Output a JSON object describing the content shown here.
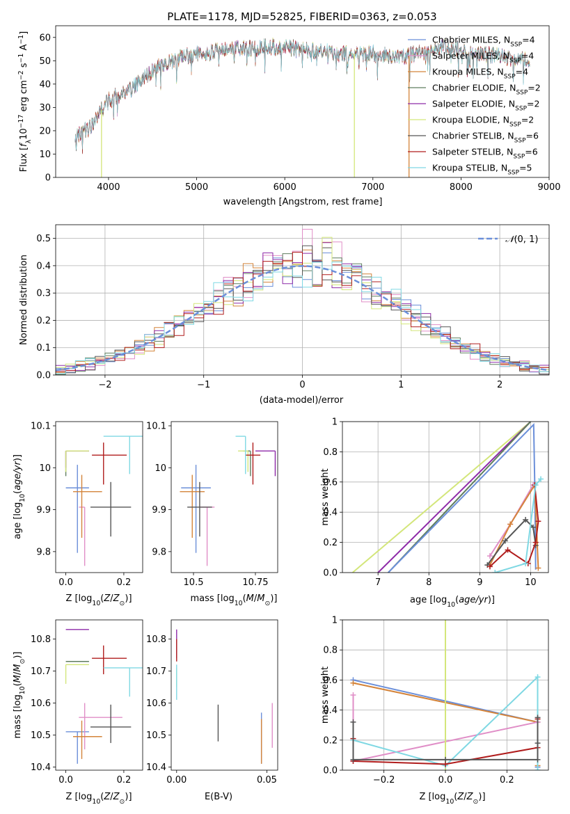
{
  "figure_title": "PLATE=1178, MJD=52825, FIBERID=0363, z=0.053",
  "colors": {
    "Chabrier MILES": "#6b8fd9",
    "Salpeter MILES": "#e08ec7",
    "Kroupa MILES": "#d4843a",
    "Chabrier ELODIE": "#5f7d5f",
    "Salpeter ELODIE": "#8e2aa8",
    "Kroupa ELODIE": "#d3e67a",
    "Chabrier STELIB": "#555555",
    "Salpeter STELIB": "#b01c1c",
    "Kroupa STELIB": "#7fd8e3"
  },
  "chart_data": [
    {
      "id": "spectrum",
      "type": "line",
      "title": "PLATE=1178, MJD=52825, FIBERID=0363, z=0.053",
      "xlabel": "wavelength [Angstrom, rest frame]",
      "ylabel": "Flux [f_λ10^-17 erg cm^-2 s^-1 A^-1]",
      "xlim": [
        3400,
        9000
      ],
      "ylim": [
        0,
        65
      ],
      "xticks": [
        "4000",
        "5000",
        "6000",
        "7000",
        "8000",
        "9000"
      ],
      "yticks": [
        "0",
        "10",
        "20",
        "30",
        "40",
        "50",
        "60"
      ],
      "grid": false,
      "legend_position": "upper right",
      "legend": [
        {
          "name": "Chabrier MILES",
          "nssp": "4"
        },
        {
          "name": "Salpeter MILES",
          "nssp": "4"
        },
        {
          "name": "Kroupa MILES",
          "nssp": "4"
        },
        {
          "name": "Chabrier ELODIE",
          "nssp": "2"
        },
        {
          "name": "Salpeter ELODIE",
          "nssp": "2"
        },
        {
          "name": "Kroupa ELODIE",
          "nssp": "2"
        },
        {
          "name": "Chabrier STELIB",
          "nssp": "6"
        },
        {
          "name": "Salpeter STELIB",
          "nssp": "6"
        },
        {
          "name": "Kroupa STELIB",
          "nssp": "5"
        }
      ],
      "continuum": [
        [
          3620,
          17
        ],
        [
          3700,
          19
        ],
        [
          3800,
          22
        ],
        [
          3900,
          28
        ],
        [
          4000,
          33
        ],
        [
          4100,
          35
        ],
        [
          4200,
          37
        ],
        [
          4300,
          39
        ],
        [
          4400,
          43
        ],
        [
          4500,
          46
        ],
        [
          4600,
          48
        ],
        [
          4700,
          49
        ],
        [
          4800,
          51
        ],
        [
          4900,
          52
        ],
        [
          5000,
          53
        ],
        [
          5100,
          53
        ],
        [
          5200,
          54
        ],
        [
          5300,
          54
        ],
        [
          5400,
          55
        ],
        [
          5600,
          55
        ],
        [
          5800,
          56
        ],
        [
          6000,
          56
        ],
        [
          6200,
          55
        ],
        [
          6400,
          54
        ],
        [
          6600,
          53
        ],
        [
          6800,
          53
        ],
        [
          7000,
          53
        ],
        [
          7200,
          52
        ],
        [
          7400,
          52
        ],
        [
          7600,
          54
        ],
        [
          7800,
          56
        ],
        [
          8000,
          55
        ],
        [
          8200,
          53
        ],
        [
          8400,
          52
        ],
        [
          8600,
          51
        ],
        [
          8780,
          51
        ]
      ],
      "drops": [
        {
          "series": "Kroupa ELODIE",
          "x": 3920
        },
        {
          "series": "Kroupa ELODIE",
          "x": 6790
        },
        {
          "series": "Kroupa MILES",
          "x": 7410
        }
      ]
    },
    {
      "id": "residuals",
      "type": "histogram",
      "xlabel": "(data-model)/error",
      "ylabel": "Normed distribution",
      "xlim": [
        -2.5,
        2.5
      ],
      "ylim": [
        0,
        0.55
      ],
      "xticks": [
        "−2",
        "−1",
        "0",
        "1",
        "2"
      ],
      "yticks": [
        "0.0",
        "0.1",
        "0.2",
        "0.3",
        "0.4",
        "0.5"
      ],
      "grid": true,
      "legend_position": "upper right",
      "reference_curve": "N(0,1)",
      "bin_width": 0.1
    },
    {
      "id": "age_vs_Z",
      "type": "errorbar",
      "xlabel": "Z [log10(Z/Z⊙)]",
      "ylabel": "age [log10(age/yr)]",
      "xlim": [
        -0.035,
        0.265
      ],
      "ylim": [
        9.75,
        10.11
      ],
      "xticks": [
        0.0,
        0.2
      ],
      "yticks": [
        9.8,
        9.9,
        10.0,
        10.1
      ],
      "grid": false,
      "points": [
        {
          "series": "Chabrier MILES",
          "x": 0.04,
          "xerr": [
            0.04,
            0.04
          ],
          "y": 9.952,
          "yerr": [
            0.155,
            0.055
          ]
        },
        {
          "series": "Salpeter MILES",
          "x": 0.065,
          "xerr": [
            0.02,
            0.0
          ],
          "y": 9.906,
          "yerr": [
            0.14,
            0.0
          ]
        },
        {
          "series": "Kroupa MILES",
          "x": 0.055,
          "xerr": [
            0.03,
            0.07
          ],
          "y": 9.943,
          "yerr": [
            0.11,
            0.04
          ]
        },
        {
          "series": "Chabrier ELODIE",
          "x": 0.0,
          "xerr": [
            0.0,
            0.08
          ],
          "y": 10.04,
          "yerr": [
            0.06,
            0.0
          ]
        },
        {
          "series": "Salpeter ELODIE",
          "x": 0.0,
          "xerr": [
            0.0,
            0.08
          ],
          "y": 10.04,
          "yerr": [
            0.04,
            0.0
          ]
        },
        {
          "series": "Kroupa ELODIE",
          "x": 0.0,
          "xerr": [
            0.0,
            0.08
          ],
          "y": 10.04,
          "yerr": [
            0.05,
            0.0
          ]
        },
        {
          "series": "Chabrier STELIB",
          "x": 0.155,
          "xerr": [
            0.07,
            0.07
          ],
          "y": 9.906,
          "yerr": [
            0.07,
            0.06
          ]
        },
        {
          "series": "Salpeter STELIB",
          "x": 0.13,
          "xerr": [
            0.04,
            0.08
          ],
          "y": 10.03,
          "yerr": [
            0.07,
            0.03
          ]
        },
        {
          "series": "Kroupa STELIB",
          "x": 0.22,
          "xerr": [
            0.09,
            0.08
          ],
          "y": 10.075,
          "yerr": [
            0.09,
            0.0
          ]
        }
      ]
    },
    {
      "id": "age_vs_mass",
      "type": "errorbar",
      "xlabel": "mass [log10(M/M⊙)]",
      "ylabel": "",
      "xlim": [
        10.41,
        10.84
      ],
      "ylim": [
        9.75,
        10.11
      ],
      "xticks": [
        10.5,
        10.75
      ],
      "yticks": [
        9.8,
        9.9,
        10.0,
        10.1
      ],
      "grid": false,
      "points": [
        {
          "series": "Chabrier MILES",
          "x": 10.51,
          "xerr": [
            0.06,
            0.06
          ],
          "y": 9.952,
          "yerr": [
            0.155,
            0.055
          ]
        },
        {
          "series": "Salpeter MILES",
          "x": 10.555,
          "xerr": [
            0.03,
            0.03
          ],
          "y": 9.906,
          "yerr": [
            0.14,
            0.0
          ]
        },
        {
          "series": "Kroupa MILES",
          "x": 10.495,
          "xerr": [
            0.05,
            0.05
          ],
          "y": 9.943,
          "yerr": [
            0.11,
            0.04
          ]
        },
        {
          "series": "Chabrier ELODIE",
          "x": 10.73,
          "xerr": [
            0.03,
            0.0
          ],
          "y": 10.04,
          "yerr": [
            0.06,
            0.0
          ]
        },
        {
          "series": "Salpeter ELODIE",
          "x": 10.83,
          "xerr": [
            0.08,
            0.0
          ],
          "y": 10.04,
          "yerr": [
            0.06,
            0.0
          ]
        },
        {
          "series": "Kroupa ELODIE",
          "x": 10.72,
          "xerr": [
            0.04,
            0.0
          ],
          "y": 10.04,
          "yerr": [
            0.05,
            0.0
          ]
        },
        {
          "series": "Chabrier STELIB",
          "x": 10.525,
          "xerr": [
            0.05,
            0.05
          ],
          "y": 9.906,
          "yerr": [
            0.07,
            0.06
          ]
        },
        {
          "series": "Salpeter STELIB",
          "x": 10.74,
          "xerr": [
            0.03,
            0.03
          ],
          "y": 10.03,
          "yerr": [
            0.07,
            0.03
          ]
        },
        {
          "series": "Kroupa STELIB",
          "x": 10.71,
          "xerr": [
            0.04,
            0.0
          ],
          "y": 10.075,
          "yerr": [
            0.09,
            0.0
          ]
        }
      ]
    },
    {
      "id": "massweight_vs_age",
      "type": "line",
      "xlabel": "age [log10(age/yr)]",
      "ylabel": "mass weight",
      "xlim": [
        6.3,
        10.35
      ],
      "ylim": [
        0,
        1
      ],
      "xticks": [
        7,
        8,
        9,
        10
      ],
      "yticks": [
        0.0,
        0.2,
        0.4,
        0.6,
        0.8,
        1.0
      ],
      "grid": true,
      "series": [
        {
          "name": "Kroupa ELODIE",
          "x": [
            6.5,
            10.0
          ],
          "y": [
            0.0,
            1.0
          ],
          "markers": false
        },
        {
          "name": "Salpeter ELODIE",
          "x": [
            7.0,
            10.0
          ],
          "y": [
            0.0,
            1.0
          ],
          "markers": false
        },
        {
          "name": "Chabrier ELODIE",
          "x": [
            7.2,
            10.0
          ],
          "y": [
            0.0,
            1.0
          ],
          "markers": false
        },
        {
          "name": "Chabrier MILES",
          "x": [
            7.2,
            10.06,
            10.08,
            10.1
          ],
          "y": [
            0.0,
            0.98,
            0.6,
            0.02
          ],
          "markers": false
        },
        {
          "name": "Salpeter MILES",
          "x": [
            9.2,
            9.6,
            10.05
          ],
          "y": [
            0.11,
            0.32,
            0.58
          ],
          "markers": true
        },
        {
          "name": "Kroupa MILES",
          "x": [
            9.2,
            9.6,
            10.08,
            10.15
          ],
          "y": [
            0.05,
            0.32,
            0.58,
            0.03
          ],
          "markers": true
        },
        {
          "name": "Chabrier STELIB",
          "x": [
            9.15,
            9.5,
            9.9,
            10.05,
            10.1
          ],
          "y": [
            0.05,
            0.21,
            0.35,
            0.3,
            0.18
          ],
          "markers": true
        },
        {
          "name": "Salpeter STELIB",
          "x": [
            9.2,
            9.55,
            9.95,
            10.1,
            10.15,
            10.08
          ],
          "y": [
            0.04,
            0.15,
            0.06,
            0.2,
            0.34,
            0.58
          ],
          "markers": true
        },
        {
          "name": "Kroupa STELIB",
          "x": [
            9.3,
            9.9,
            10.1,
            10.2
          ],
          "y": [
            0.0,
            0.06,
            0.58,
            0.62
          ],
          "markers": true
        }
      ]
    },
    {
      "id": "mass_vs_Z",
      "type": "errorbar",
      "xlabel": "Z [log10(Z/Z⊙)]",
      "ylabel": "mass [log10(M/M⊙)]",
      "xlim": [
        -0.035,
        0.265
      ],
      "ylim": [
        10.39,
        10.86
      ],
      "xticks": [
        0.0,
        0.2
      ],
      "yticks": [
        10.4,
        10.5,
        10.6,
        10.7,
        10.8
      ],
      "grid": false,
      "points": [
        {
          "series": "Chabrier MILES",
          "x": 0.04,
          "xerr": [
            0.04,
            0.04
          ],
          "y": 10.51,
          "yerr": [
            0.1,
            0.0
          ]
        },
        {
          "series": "Salpeter MILES",
          "x": 0.065,
          "xerr": [
            0.02,
            0.13
          ],
          "y": 10.555,
          "yerr": [
            0.1,
            0.045
          ]
        },
        {
          "series": "Kroupa MILES",
          "x": 0.055,
          "xerr": [
            0.03,
            0.07
          ],
          "y": 10.495,
          "yerr": [
            0.07,
            0.05
          ]
        },
        {
          "series": "Chabrier ELODIE",
          "x": 0.0,
          "xerr": [
            0.0,
            0.08
          ],
          "y": 10.73,
          "yerr": [
            0.0,
            0.0
          ]
        },
        {
          "series": "Salpeter ELODIE",
          "x": 0.0,
          "xerr": [
            0.0,
            0.08
          ],
          "y": 10.83,
          "yerr": [
            0.0,
            0.0
          ]
        },
        {
          "series": "Kroupa ELODIE",
          "x": 0.0,
          "xerr": [
            0.0,
            0.08
          ],
          "y": 10.72,
          "yerr": [
            0.06,
            0.0
          ]
        },
        {
          "series": "Chabrier STELIB",
          "x": 0.155,
          "xerr": [
            0.07,
            0.07
          ],
          "y": 10.525,
          "yerr": [
            0.05,
            0.07
          ]
        },
        {
          "series": "Salpeter STELIB",
          "x": 0.13,
          "xerr": [
            0.04,
            0.08
          ],
          "y": 10.74,
          "yerr": [
            0.05,
            0.04
          ]
        },
        {
          "series": "Kroupa STELIB",
          "x": 0.22,
          "xerr": [
            0.09,
            0.08
          ],
          "y": 10.71,
          "yerr": [
            0.09,
            0.0
          ]
        }
      ]
    },
    {
      "id": "mass_vs_ebv",
      "type": "errorbar",
      "xlabel": "E(B-V)",
      "ylabel": "",
      "xlim": [
        -0.003,
        0.056
      ],
      "ylim": [
        10.39,
        10.86
      ],
      "xticks": [
        "0.00",
        "0.05"
      ],
      "yticks": [
        10.4,
        10.5,
        10.6,
        10.7,
        10.8
      ],
      "grid": false,
      "points": [
        {
          "series": "Chabrier MILES",
          "x": 0.047,
          "y": 10.51,
          "yerr": [
            0.1,
            0.06
          ]
        },
        {
          "series": "Salpeter MILES",
          "x": 0.053,
          "y": 10.53,
          "yerr": [
            0.07,
            0.07
          ]
        },
        {
          "series": "Kroupa MILES",
          "x": 0.047,
          "y": 10.48,
          "yerr": [
            0.07,
            0.07
          ]
        },
        {
          "series": "Salpeter ELODIE",
          "x": 0.0,
          "y": 10.8,
          "yerr": [
            0.06,
            0.03
          ]
        },
        {
          "series": "Kroupa ELODIE",
          "x": 0.0,
          "y": 10.7,
          "yerr": [
            0.05,
            0.01
          ]
        },
        {
          "series": "Kroupa STELIB",
          "x": 0.0,
          "y": 10.67,
          "yerr": [
            0.06,
            0.05
          ]
        },
        {
          "series": "Salpeter STELIB",
          "x": 0.0,
          "y": 10.765,
          "yerr": [
            0.035,
            0.035
          ]
        },
        {
          "series": "Chabrier STELIB",
          "x": 0.023,
          "y": 10.535,
          "yerr": [
            0.055,
            0.06
          ]
        }
      ]
    },
    {
      "id": "massweight_vs_Z",
      "type": "line",
      "xlabel": "Z [log10(Z/Z⊙)]",
      "ylabel": "mass weight",
      "xlim": [
        -0.335,
        0.335
      ],
      "ylim": [
        0,
        1
      ],
      "xticks": [
        -0.2,
        0.0,
        0.2
      ],
      "yticks": [
        0.0,
        0.2,
        0.4,
        0.6,
        0.8,
        1.0
      ],
      "grid": true,
      "series": [
        {
          "name": "Chabrier MILES",
          "x": [
            -0.3,
            0.3,
            0.3
          ],
          "y": [
            0.6,
            0.32,
            0.02
          ],
          "markers": true
        },
        {
          "name": "Kroupa MILES",
          "x": [
            -0.3,
            0.3,
            0.3
          ],
          "y": [
            0.58,
            0.32,
            0.03
          ],
          "markers": true
        },
        {
          "name": "Salpeter MILES",
          "x": [
            -0.3,
            -0.3,
            -0.3,
            0.3
          ],
          "y": [
            0.5,
            0.2,
            0.06,
            0.32
          ],
          "markers": true
        },
        {
          "name": "Kroupa ELODIE",
          "x": [
            0.0,
            0.0
          ],
          "y": [
            1.0,
            0.0
          ],
          "markers": false
        },
        {
          "name": "Kroupa STELIB",
          "x": [
            -0.3,
            0.0,
            0.3,
            0.3
          ],
          "y": [
            0.2,
            0.03,
            0.62,
            0.0
          ],
          "markers": true
        },
        {
          "name": "Salpeter STELIB",
          "x": [
            -0.3,
            -0.3,
            0.0,
            0.3,
            0.3
          ],
          "y": [
            0.21,
            0.06,
            0.04,
            0.15,
            0.34
          ],
          "markers": true
        },
        {
          "name": "Chabrier STELIB",
          "x": [
            -0.3,
            -0.3,
            0.0,
            0.3,
            0.3,
            0.3
          ],
          "y": [
            0.32,
            0.07,
            0.07,
            0.07,
            0.18,
            0.35
          ],
          "markers": true
        }
      ]
    }
  ]
}
